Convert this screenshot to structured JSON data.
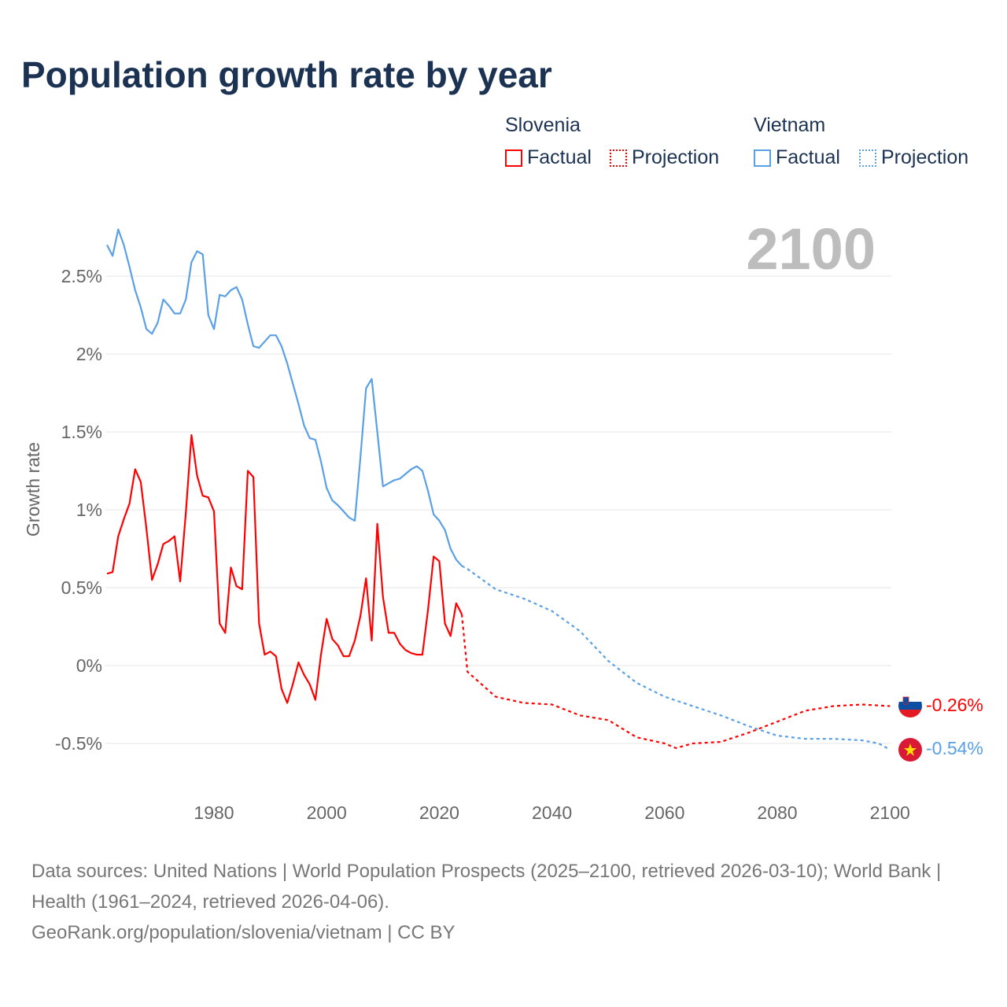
{
  "title": "Population growth rate by year",
  "legend": {
    "groups": [
      {
        "name": "Slovenia",
        "factual": "Factual",
        "projection": "Projection",
        "color": "#ff0000"
      },
      {
        "name": "Vietnam",
        "factual": "Factual",
        "projection": "Projection",
        "color": "#5aa0e6"
      }
    ]
  },
  "year_watermark": "2100",
  "end_labels": {
    "slovenia": "-0.26%",
    "vietnam": "-0.54%"
  },
  "footer": {
    "line1": "Data sources: United Nations | World Population Prospects (2025–2100, retrieved 2026-03-10); World Bank | Health (1961–2024, retrieved 2026-04-06).",
    "line2": "GeoRank.org/population/slovenia/vietnam | CC BY"
  },
  "chart_data": {
    "type": "line",
    "title": "Population growth rate by year",
    "xlabel": "",
    "ylabel": "Growth rate",
    "xlim": [
      1961,
      2100
    ],
    "ylim": [
      -0.65,
      2.85
    ],
    "xticks": [
      1980,
      2000,
      2020,
      2040,
      2060,
      2080,
      2100
    ],
    "xtick_labels": [
      "1980",
      "2000",
      "2020",
      "2040",
      "2060",
      "2080",
      "2100"
    ],
    "yticks": [
      -0.5,
      0,
      0.5,
      1,
      1.5,
      2,
      2.5
    ],
    "ytick_labels": [
      "-0.5%",
      "0%",
      "0.5%",
      "1%",
      "1.5%",
      "2%",
      "2.5%"
    ],
    "grid": true,
    "legend_position": "top-right",
    "series": [
      {
        "name": "Vietnam Factual",
        "color": "#5aa0e6",
        "dashed": false,
        "x": [
          1961,
          1962,
          1963,
          1964,
          1965,
          1966,
          1967,
          1968,
          1969,
          1970,
          1971,
          1972,
          1973,
          1974,
          1975,
          1976,
          1977,
          1978,
          1979,
          1980,
          1981,
          1982,
          1983,
          1984,
          1985,
          1986,
          1987,
          1988,
          1989,
          1990,
          1991,
          1992,
          1993,
          1994,
          1995,
          1996,
          1997,
          1998,
          1999,
          2000,
          2001,
          2002,
          2003,
          2004,
          2005,
          2006,
          2007,
          2008,
          2009,
          2010,
          2011,
          2012,
          2013,
          2014,
          2015,
          2016,
          2017,
          2018,
          2019,
          2020,
          2021,
          2022,
          2023,
          2024
        ],
        "y": [
          2.7,
          2.63,
          2.8,
          2.7,
          2.56,
          2.41,
          2.3,
          2.16,
          2.13,
          2.2,
          2.35,
          2.31,
          2.26,
          2.26,
          2.35,
          2.59,
          2.66,
          2.64,
          2.25,
          2.16,
          2.38,
          2.37,
          2.41,
          2.43,
          2.35,
          2.19,
          2.05,
          2.04,
          2.08,
          2.12,
          2.12,
          2.05,
          1.94,
          1.81,
          1.68,
          1.54,
          1.46,
          1.45,
          1.31,
          1.14,
          1.06,
          1.03,
          0.99,
          0.95,
          0.93,
          1.34,
          1.78,
          1.84,
          1.5,
          1.15,
          1.17,
          1.19,
          1.2,
          1.23,
          1.26,
          1.28,
          1.25,
          1.12,
          0.97,
          0.93,
          0.87,
          0.75,
          0.68,
          0.64
        ]
      },
      {
        "name": "Vietnam Projection",
        "color": "#5aa0e6",
        "dashed": true,
        "x": [
          2024,
          2025,
          2030,
          2035,
          2040,
          2045,
          2050,
          2055,
          2060,
          2065,
          2070,
          2075,
          2080,
          2085,
          2090,
          2095,
          2098,
          2100
        ],
        "y": [
          0.64,
          0.62,
          0.49,
          0.43,
          0.35,
          0.22,
          0.03,
          -0.11,
          -0.2,
          -0.26,
          -0.32,
          -0.39,
          -0.45,
          -0.47,
          -0.47,
          -0.48,
          -0.5,
          -0.54
        ]
      },
      {
        "name": "Slovenia Factual",
        "color": "#ff0000",
        "dashed": false,
        "x": [
          1961,
          1962,
          1963,
          1964,
          1965,
          1966,
          1967,
          1968,
          1969,
          1970,
          1971,
          1972,
          1973,
          1974,
          1975,
          1976,
          1977,
          1978,
          1979,
          1980,
          1981,
          1982,
          1983,
          1984,
          1985,
          1986,
          1987,
          1988,
          1989,
          1990,
          1991,
          1992,
          1993,
          1994,
          1995,
          1996,
          1997,
          1998,
          1999,
          2000,
          2001,
          2002,
          2003,
          2004,
          2005,
          2006,
          2007,
          2008,
          2009,
          2010,
          2011,
          2012,
          2013,
          2014,
          2015,
          2016,
          2017,
          2018,
          2019,
          2020,
          2021,
          2022,
          2023,
          2024
        ],
        "y": [
          0.59,
          0.6,
          0.83,
          0.94,
          1.04,
          1.26,
          1.18,
          0.88,
          0.55,
          0.65,
          0.78,
          0.8,
          0.83,
          0.54,
          0.98,
          1.48,
          1.22,
          1.09,
          1.08,
          0.99,
          0.27,
          0.21,
          0.63,
          0.51,
          0.49,
          1.25,
          1.21,
          0.27,
          0.07,
          0.09,
          0.06,
          -0.15,
          -0.24,
          -0.12,
          0.02,
          -0.06,
          -0.12,
          -0.22,
          0.07,
          0.3,
          0.17,
          0.13,
          0.06,
          0.06,
          0.16,
          0.32,
          0.56,
          0.16,
          0.91,
          0.44,
          0.21,
          0.21,
          0.14,
          0.1,
          0.08,
          0.07,
          0.07,
          0.36,
          0.7,
          0.67,
          0.27,
          0.19,
          0.4,
          0.33
        ]
      },
      {
        "name": "Slovenia Projection",
        "color": "#ff0000",
        "dashed": true,
        "x": [
          2024,
          2025,
          2030,
          2035,
          2040,
          2045,
          2050,
          2055,
          2060,
          2062,
          2065,
          2070,
          2075,
          2080,
          2085,
          2090,
          2095,
          2100
        ],
        "y": [
          0.33,
          -0.04,
          -0.2,
          -0.24,
          -0.25,
          -0.32,
          -0.35,
          -0.46,
          -0.5,
          -0.53,
          -0.5,
          -0.49,
          -0.43,
          -0.36,
          -0.29,
          -0.26,
          -0.25,
          -0.26
        ]
      }
    ]
  }
}
